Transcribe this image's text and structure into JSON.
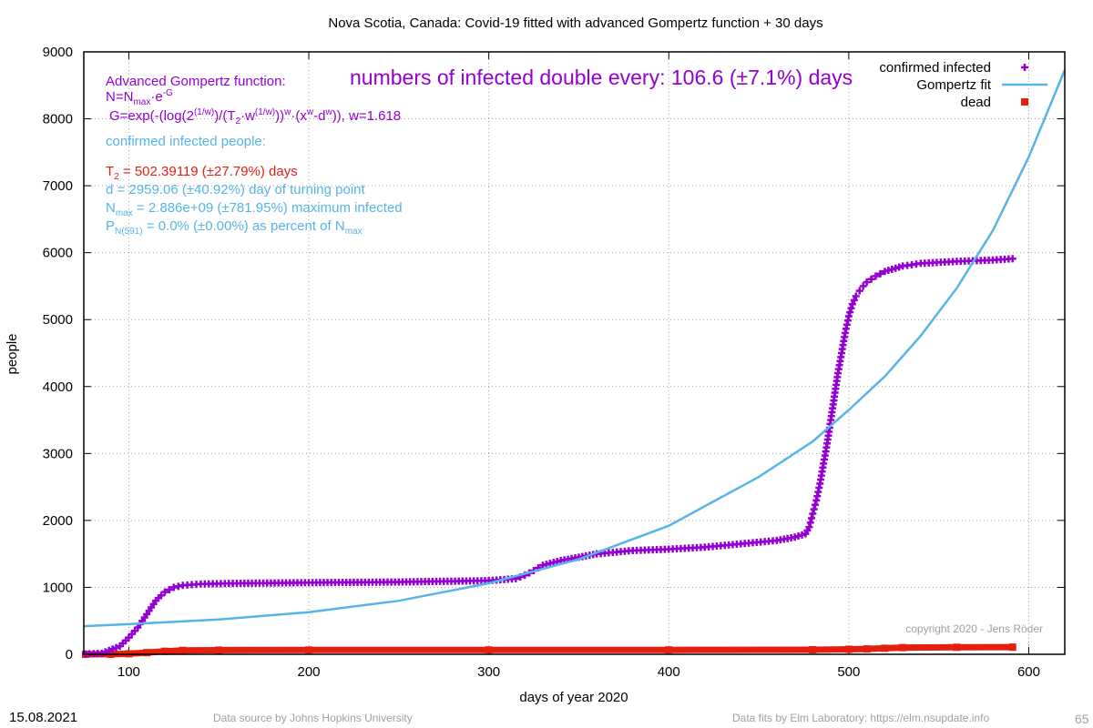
{
  "title": "Nova Scotia,  Canada: Covid-19 fitted with advanced Gompertz function + 30 days",
  "headline": "numbers of infected double every: 106.6 (±7.1%) days",
  "annotations": {
    "formula_heading": "Advanced Gompertz function:",
    "formula_n_pre": "N=N",
    "formula_n_sub": "max",
    "formula_n_mid": "·e",
    "formula_n_sup": "-G",
    "formula_g_1": "G=exp(-(log(2",
    "formula_g_sup1": "(1/w)",
    "formula_g_2": ")/(T",
    "formula_g_sub": "2",
    "formula_g_3": "·w",
    "formula_g_sup2": "(1/w)",
    "formula_g_4": "))",
    "formula_g_sup3": "w",
    "formula_g_5": "·(x",
    "formula_g_sup4": "w",
    "formula_g_6": "-d",
    "formula_g_sup5": "w",
    "formula_g_7": ")), w=1.618",
    "confirmed_heading": "confirmed infected people:",
    "t2_pre": "T",
    "t2_sub": "2",
    "t2_post": " = 502.39119 (±27.79%) days",
    "d_line": "d = 2959.06 (±40.92%) day of turning point",
    "nmax_pre": "N",
    "nmax_sub": "max",
    "nmax_post": " = 2.886e+09 (±781.95%) maximum infected",
    "p_pre": "P",
    "p_sub": "N(591)",
    "p_mid": " = 0.0% (±0.00%) as percent of N",
    "p_sub2": "max"
  },
  "copyright": "copyright 2020 - Jens Röder",
  "footer": {
    "date": "15.08.2021",
    "source": "Data source by Johns Hopkins University",
    "fits": "Data fits by Elm Laboratory: https://elm.nsupdate.info",
    "page": "65"
  },
  "chart_data": {
    "type": "scatter",
    "title": "Nova Scotia,  Canada: Covid-19 fitted with advanced Gompertz function + 30 days",
    "xlabel": "days of year 2020",
    "ylabel": "people",
    "xlim": [
      75,
      620
    ],
    "ylim": [
      0,
      9000
    ],
    "x_ticks": [
      100,
      200,
      300,
      400,
      500,
      600
    ],
    "y_ticks": [
      0,
      1000,
      2000,
      3000,
      4000,
      5000,
      6000,
      7000,
      8000,
      9000
    ],
    "grid": true,
    "legend_position": "top-right",
    "colors": {
      "confirmed": "#9400d3",
      "fit": "#56b4e9",
      "dead": "#e51e10"
    },
    "series": [
      {
        "name": "confirmed infected",
        "type": "points",
        "x": [
          76,
          85,
          95,
          100,
          105,
          110,
          115,
          118,
          120,
          125,
          130,
          140,
          160,
          200,
          250,
          300,
          315,
          320,
          325,
          330,
          340,
          350,
          360,
          380,
          400,
          420,
          440,
          460,
          470,
          476,
          478,
          480,
          482,
          484,
          486,
          488,
          490,
          492,
          494,
          496,
          498,
          500,
          502,
          504,
          506,
          508,
          510,
          515,
          520,
          530,
          540,
          560,
          580,
          591
        ],
        "y": [
          5,
          15,
          120,
          250,
          400,
          600,
          800,
          880,
          930,
          1000,
          1030,
          1050,
          1060,
          1070,
          1080,
          1100,
          1130,
          1180,
          1250,
          1330,
          1400,
          1450,
          1500,
          1550,
          1570,
          1600,
          1650,
          1700,
          1750,
          1800,
          1900,
          2100,
          2300,
          2550,
          2850,
          3150,
          3500,
          3850,
          4200,
          4500,
          4800,
          5050,
          5230,
          5350,
          5430,
          5500,
          5560,
          5650,
          5720,
          5800,
          5840,
          5870,
          5890,
          5910
        ]
      },
      {
        "name": "Gompertz fit",
        "type": "line",
        "x": [
          75,
          100,
          150,
          200,
          250,
          300,
          350,
          400,
          450,
          480,
          500,
          520,
          540,
          560,
          580,
          600,
          620
        ],
        "y": [
          420,
          450,
          520,
          630,
          800,
          1060,
          1420,
          1920,
          2650,
          3180,
          3650,
          4150,
          4760,
          5470,
          6330,
          7430,
          8730
        ]
      },
      {
        "name": "dead",
        "type": "points",
        "x": [
          76,
          90,
          100,
          110,
          120,
          130,
          150,
          200,
          300,
          400,
          480,
          500,
          510,
          520,
          530,
          560,
          591
        ],
        "y": [
          0,
          1,
          8,
          25,
          45,
          58,
          62,
          64,
          65,
          65,
          68,
          75,
          80,
          90,
          100,
          105,
          107
        ]
      }
    ]
  }
}
